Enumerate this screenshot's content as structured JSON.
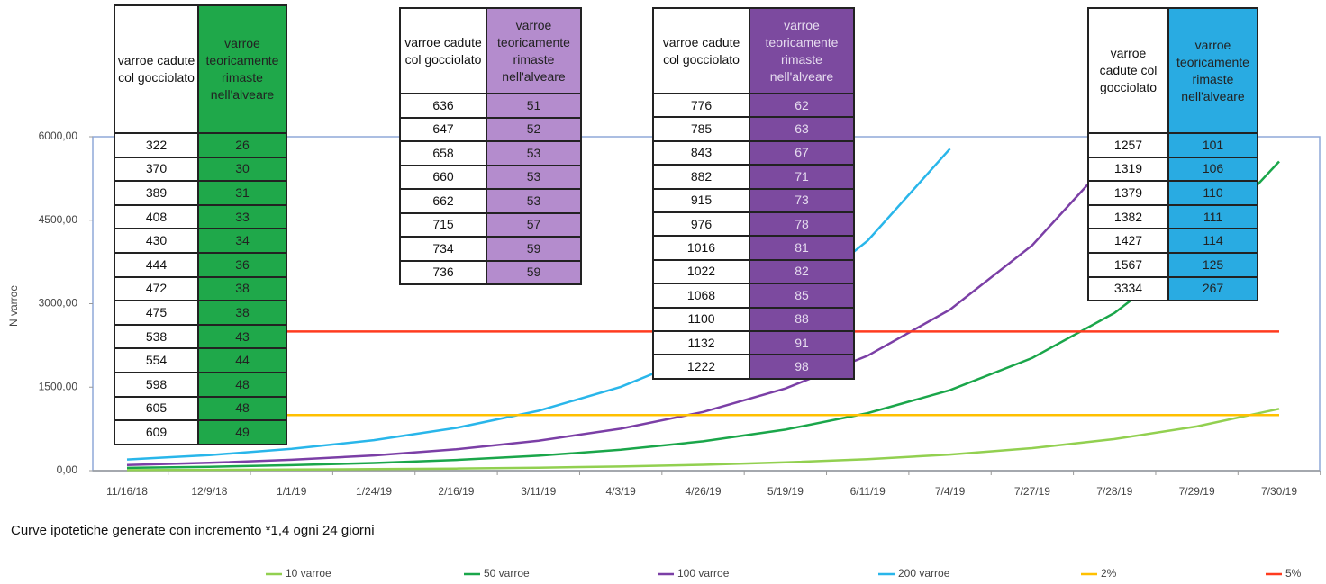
{
  "chart_data": {
    "type": "line",
    "y_label": "N varroe",
    "caption": "Curve ipotetiche generate con incremento *1,4 ogni 24 giorni",
    "categories": [
      "11/16/18",
      "12/9/18",
      "1/1/19",
      "1/24/19",
      "2/16/19",
      "3/11/19",
      "4/3/19",
      "4/26/19",
      "5/19/19",
      "6/11/19",
      "7/4/19",
      "7/27/19",
      "7/28/19",
      "7/29/19",
      "7/30/19"
    ],
    "ylim": [
      0,
      6000
    ],
    "yticks": [
      {
        "value": 0,
        "label": "0,00"
      },
      {
        "value": 1500,
        "label": "1500,00"
      },
      {
        "value": 3000,
        "label": "3000,00"
      },
      {
        "value": 4500,
        "label": "4500,00"
      },
      {
        "value": 6000,
        "label": "6000,00"
      }
    ],
    "grid": false,
    "series": [
      {
        "name": "10 varroe",
        "color": "#92d050",
        "values": [
          10,
          14,
          20,
          27,
          38,
          54,
          75,
          105,
          148,
          207,
          289,
          405,
          567,
          794,
          1111
        ]
      },
      {
        "name": "50 varroe",
        "color": "#1aa64a",
        "values": [
          50,
          70,
          98,
          137,
          192,
          269,
          376,
          527,
          738,
          1033,
          1446,
          2025,
          2835,
          3969,
          5556
        ]
      },
      {
        "name": "100 varroe",
        "color": "#7b3fa6",
        "values": [
          100,
          140,
          196,
          274,
          384,
          538,
          753,
          1054,
          1476,
          2066,
          2893,
          4050,
          5669,
          null,
          null
        ]
      },
      {
        "name": "200 varroe",
        "color": "#29b6ea",
        "values": [
          200,
          280,
          392,
          549,
          768,
          1076,
          1506,
          2108,
          2952,
          4132,
          5785,
          null,
          null,
          null,
          null
        ]
      },
      {
        "name": "2%",
        "color": "#ffc000",
        "values": [
          1000,
          1000,
          1000,
          1000,
          1000,
          1000,
          1000,
          1000,
          1000,
          1000,
          1000,
          1000,
          1000,
          1000,
          1000
        ]
      },
      {
        "name": "5%",
        "color": "#ff3b1f",
        "values": [
          2500,
          2500,
          2500,
          2500,
          2500,
          2500,
          2500,
          2500,
          2500,
          2500,
          2500,
          2500,
          2500,
          2500,
          2500
        ]
      }
    ]
  },
  "tables": [
    {
      "header": [
        "varroe cadute col gocciolato",
        "varroe teoricamente rimaste nell'alveare"
      ],
      "color": "#1fa84a",
      "rows": [
        [
          322,
          26
        ],
        [
          370,
          30
        ],
        [
          389,
          31
        ],
        [
          408,
          33
        ],
        [
          430,
          34
        ],
        [
          444,
          36
        ],
        [
          472,
          38
        ],
        [
          475,
          38
        ],
        [
          538,
          43
        ],
        [
          554,
          44
        ],
        [
          598,
          48
        ],
        [
          605,
          48
        ],
        [
          609,
          49
        ]
      ]
    },
    {
      "header": [
        "varroe cadute col gocciolato",
        "varroe teoricamente rimaste nell'alveare"
      ],
      "color": "#b48ccd",
      "rows": [
        [
          636,
          51
        ],
        [
          647,
          52
        ],
        [
          658,
          53
        ],
        [
          660,
          53
        ],
        [
          662,
          53
        ],
        [
          715,
          57
        ],
        [
          734,
          59
        ],
        [
          736,
          59
        ]
      ]
    },
    {
      "header": [
        "varroe cadute col gocciolato",
        "varroe teoricamente rimaste nell'alveare"
      ],
      "color": "#7c4a9f",
      "rows": [
        [
          776,
          62
        ],
        [
          785,
          63
        ],
        [
          843,
          67
        ],
        [
          882,
          71
        ],
        [
          915,
          73
        ],
        [
          976,
          78
        ],
        [
          1016,
          81
        ],
        [
          1022,
          82
        ],
        [
          1068,
          85
        ],
        [
          1100,
          88
        ],
        [
          1132,
          91
        ],
        [
          1222,
          98
        ]
      ]
    },
    {
      "header": [
        "varroe cadute col gocciolato",
        "varroe teoricamente rimaste nell'alveare"
      ],
      "color": "#29abe2",
      "rows": [
        [
          1257,
          101
        ],
        [
          1319,
          106
        ],
        [
          1379,
          110
        ],
        [
          1382,
          111
        ],
        [
          1427,
          114
        ],
        [
          1567,
          125
        ],
        [
          3334,
          267
        ]
      ]
    }
  ]
}
